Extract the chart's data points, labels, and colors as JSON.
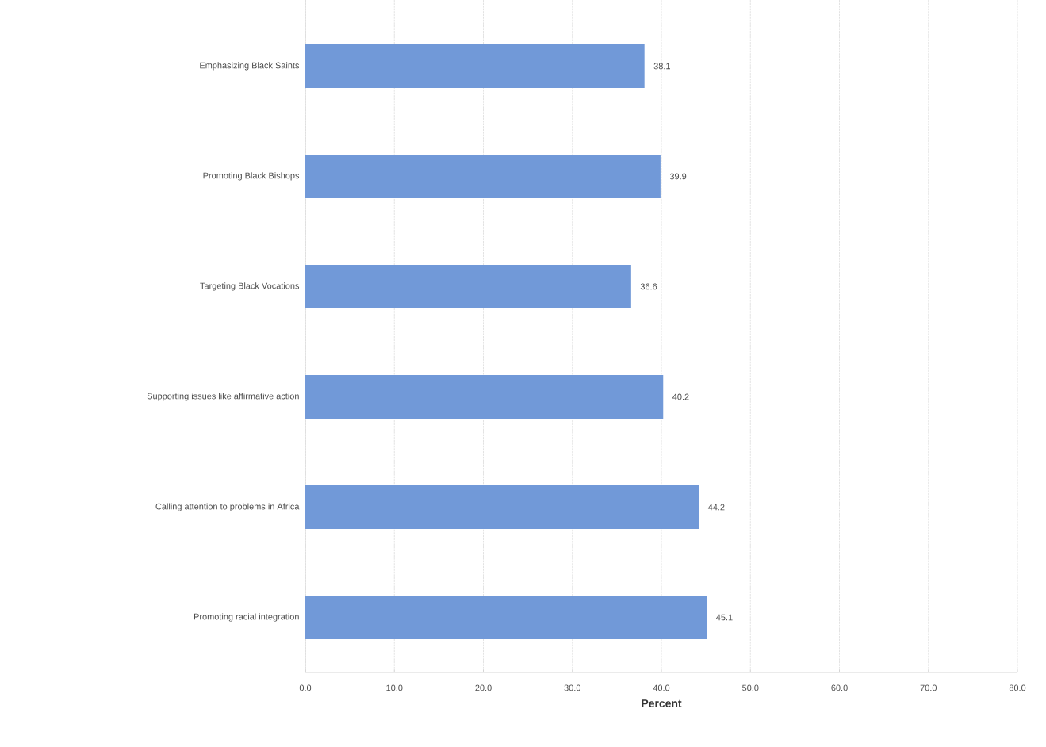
{
  "chart_data": {
    "type": "bar",
    "orientation": "horizontal",
    "xlabel": "Percent",
    "categories": [
      "Emphasizing Black Saints",
      "Promoting Black Bishops",
      "Targeting Black Vocations",
      "Supporting issues like affirmative action",
      "Calling attention to problems in Africa",
      "Promoting racial integration"
    ],
    "values": [
      38.1,
      39.9,
      36.6,
      40.2,
      44.2,
      45.1
    ],
    "color": "#7199d8",
    "data_labels": true,
    "xlim": [
      0,
      80
    ],
    "xticks": [
      {
        "value": 0,
        "label": "0.0"
      },
      {
        "value": 10,
        "label": "10.0"
      },
      {
        "value": 20,
        "label": "20.0"
      },
      {
        "value": 30,
        "label": "30.0"
      },
      {
        "value": 40,
        "label": "40.0"
      },
      {
        "value": 50,
        "label": "50.0"
      },
      {
        "value": 60,
        "label": "60.0"
      },
      {
        "value": 70,
        "label": "70.0"
      },
      {
        "value": 80,
        "label": "80.0"
      }
    ],
    "grid": "x"
  }
}
